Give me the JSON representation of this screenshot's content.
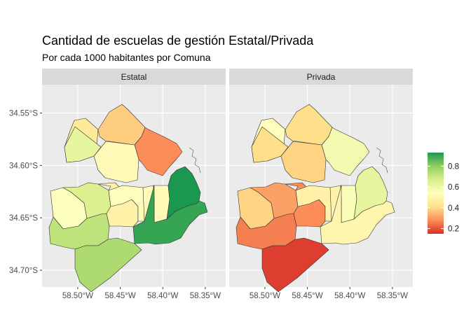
{
  "chart_data": {
    "type": "choropleth",
    "title": "Cantidad de escuelas de gestión Estatal/Privada",
    "subtitle": "Por cada 1000 habitantes por Comuna",
    "facets": [
      "Estatal",
      "Privada"
    ],
    "x_ticks": [
      "58.50°W",
      "58.45°W",
      "58.40°W",
      "58.35°W"
    ],
    "x_tick_values": [
      -58.5,
      -58.45,
      -58.4,
      -58.35
    ],
    "y_ticks": [
      "34.55°S",
      "34.60°S",
      "34.65°S",
      "34.70°S"
    ],
    "y_tick_values": [
      -34.55,
      -34.6,
      -34.65,
      -34.7
    ],
    "xlim": [
      -58.542,
      -58.326
    ],
    "ylim": [
      -34.716,
      -34.523
    ],
    "legend": {
      "ticks": [
        "0.2",
        "0.4",
        "0.6",
        "0.8"
      ],
      "tick_values": [
        0.2,
        0.4,
        0.6,
        0.8
      ],
      "range": [
        0.15,
        0.93
      ],
      "position": "right",
      "palette": [
        "#d73027",
        "#fc8d59",
        "#fee08b",
        "#ffffbf",
        "#d9ef8b",
        "#91cf60",
        "#1a9850"
      ]
    },
    "comunas": [
      1,
      2,
      3,
      4,
      5,
      6,
      7,
      8,
      9,
      10,
      11,
      12,
      13,
      14,
      15
    ],
    "series": [
      {
        "name": "Estatal",
        "values": [
          0.93,
          0.28,
          0.52,
          0.9,
          0.52,
          0.53,
          0.48,
          0.75,
          0.72,
          0.66,
          0.55,
          0.62,
          0.45,
          0.38,
          0.52
        ]
      },
      {
        "name": "Privada",
        "values": [
          0.62,
          0.58,
          0.56,
          0.5,
          0.49,
          0.48,
          0.28,
          0.17,
          0.26,
          0.31,
          0.39,
          0.41,
          0.53,
          0.41,
          0.39
        ]
      }
    ]
  }
}
